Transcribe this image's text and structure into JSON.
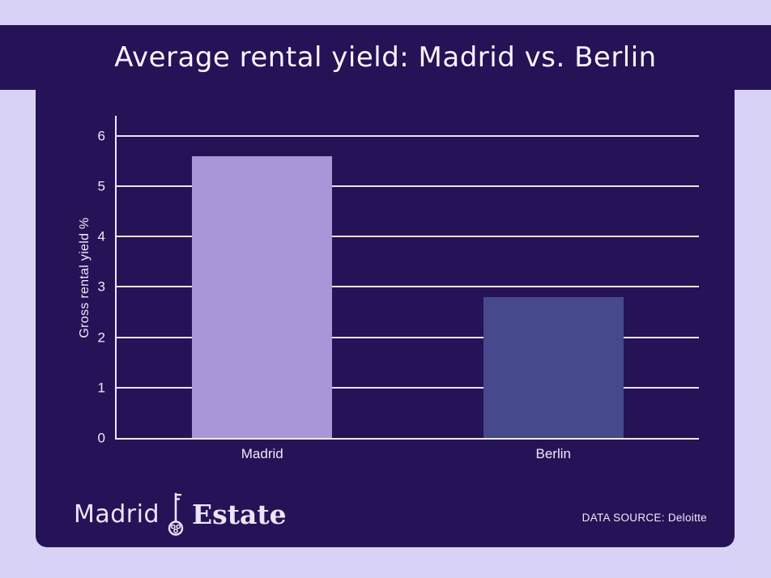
{
  "page": {
    "background_color": "#d8d2f7",
    "panel_color": "#261256",
    "text_color": "#f7f4fc",
    "gridline_color": "#e8e4f4"
  },
  "header": {
    "title": "Average rental yield: Madrid vs. Berlin"
  },
  "chart_data": {
    "type": "bar",
    "title": "Average rental yield: Madrid vs. Berlin",
    "categories": [
      "Madrid",
      "Berlin"
    ],
    "values": [
      5.6,
      2.8
    ],
    "xlabel": "",
    "ylabel": "Gross rental yield %",
    "ylim": [
      0,
      6.4
    ],
    "yticks": [
      0,
      1,
      2,
      3,
      4,
      5,
      6
    ],
    "grid": true,
    "legend_position": "none",
    "bar_colors": [
      "#a996d9",
      "#46498c"
    ]
  },
  "footer": {
    "logo": {
      "part1": "Madrid",
      "icon": "key-icon",
      "part2": "Estate",
      "color": "#eae4f6"
    },
    "source_label": "DATA SOURCE: Deloitte"
  }
}
